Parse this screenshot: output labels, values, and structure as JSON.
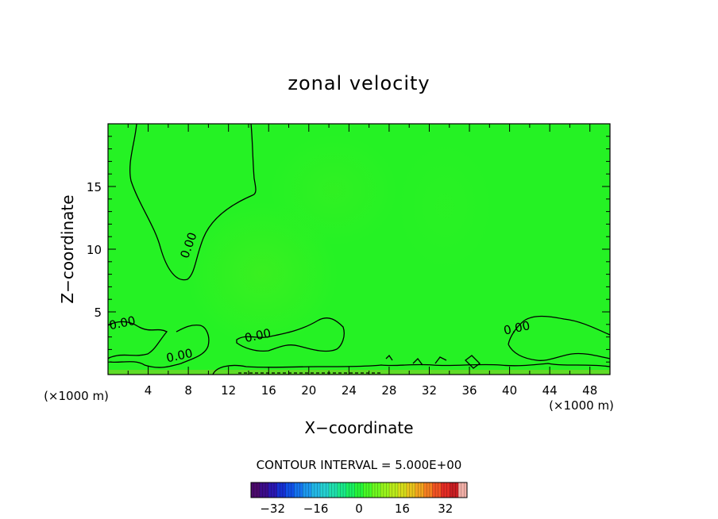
{
  "chart_data": {
    "type": "heatmap",
    "title": "zonal velocity",
    "xlabel": "X−coordinate",
    "ylabel": "Z−coordinate",
    "x_unit_left": "(×1000 m)",
    "x_unit_right": "(×1000 m)",
    "xlim": [
      0,
      50
    ],
    "ylim": [
      0,
      20
    ],
    "x_ticks": [
      4,
      8,
      12,
      16,
      20,
      24,
      28,
      32,
      36,
      40,
      44,
      48
    ],
    "y_ticks": [
      5,
      10,
      15
    ],
    "contour_interval_label": "CONTOUR INTERVAL = 5.000E+00",
    "contour_labels": [
      {
        "text": "0.00",
        "x": 8.4,
        "y": 10.2
      },
      {
        "text": "0.00",
        "x": 1.5,
        "y": 3.8
      },
      {
        "text": "0.00",
        "x": 7.2,
        "y": 1.2
      },
      {
        "text": "0.00",
        "x": 15.0,
        "y": 2.8
      },
      {
        "text": "0.00",
        "x": 40.8,
        "y": 3.4
      }
    ],
    "colorbar": {
      "range": [
        -40,
        40
      ],
      "ticks": [
        -32,
        -16,
        0,
        16,
        32
      ],
      "colors": [
        "#4b0a6b",
        "#3c0c8a",
        "#2a17b0",
        "#1630d2",
        "#1050e6",
        "#1574ee",
        "#1c98ee",
        "#23b8e6",
        "#25cfd0",
        "#20dfae",
        "#1ae88a",
        "#1aef62",
        "#26f43a",
        "#48f826",
        "#6ff820",
        "#98f41c",
        "#baea1a",
        "#d6dc1a",
        "#e8c41c",
        "#f2a41e",
        "#f47e20",
        "#f05222",
        "#e22c24",
        "#c81e22",
        "#f2b0a8"
      ]
    },
    "field_colors": {
      "base": "#25f224",
      "weak_positive": "#32f022",
      "near_surface": "#6ad828"
    }
  }
}
